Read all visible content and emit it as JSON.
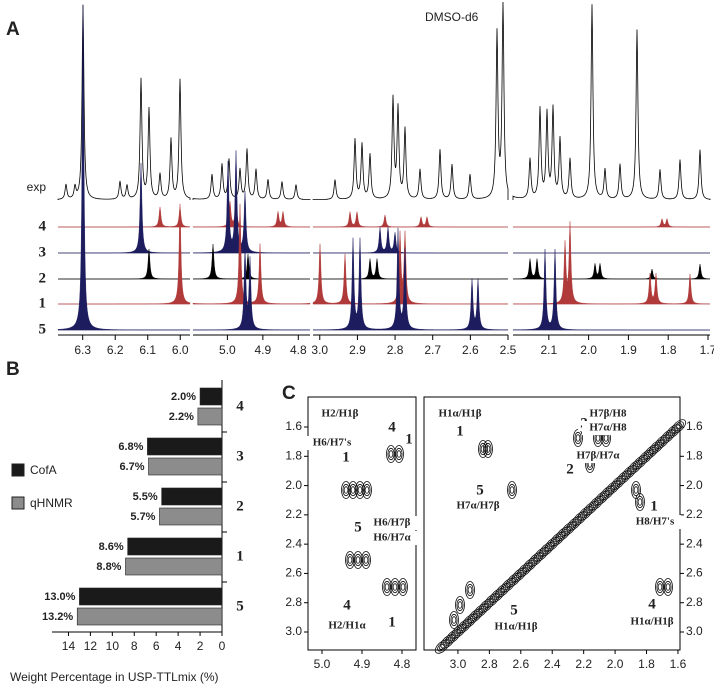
{
  "chart_data": [
    {
      "type": "spectrum",
      "panel_label": "A",
      "solvent_label": "DMSO-d6",
      "rows": [
        {
          "label": "exp",
          "color": "#000000"
        },
        {
          "label": "4",
          "color": "#b03a3a"
        },
        {
          "label": "3",
          "color": "#1c1c5e"
        },
        {
          "label": "2",
          "color": "#000000"
        },
        {
          "label": "1",
          "color": "#b03a3a"
        },
        {
          "label": "5",
          "color": "#1c1c5e"
        }
      ],
      "segments": [
        {
          "xlim": [
            6.376,
            5.97
          ],
          "xticks": [
            6.3,
            6.2,
            6.1,
            {
              "value": 6,
              "label": "6.0"
            }
          ]
        },
        {
          "xlim": [
            5.097,
            4.767
          ],
          "xticks": [
            {
              "value": 5,
              "label": "5.0"
            },
            4.9,
            4.8
          ]
        },
        {
          "xlim": [
            3.018,
            2.5
          ],
          "xticks": [
            {
              "value": 3,
              "label": "3.0"
            },
            2.9,
            2.8,
            2.7,
            2.6,
            2.5
          ]
        },
        {
          "xlim": [
            2.19,
            1.695
          ],
          "xticks": [
            2.1,
            {
              "value": 2,
              "label": "2.0"
            },
            1.9,
            1.8,
            1.7
          ]
        }
      ]
    },
    {
      "type": "bar",
      "panel_label": "B",
      "xlabel": "Weight Percentage in USP-TTLmix (%)",
      "categories": [
        "4",
        "3",
        "2",
        "1",
        "5"
      ],
      "series": [
        {
          "name": "CofA",
          "color": "#1a1a1a",
          "values": [
            2.0,
            6.8,
            5.5,
            8.6,
            13.0
          ],
          "value_labels": [
            "2.0%",
            "6.8%",
            "5.5%",
            "8.6%",
            "13.0%"
          ]
        },
        {
          "name": "qHNMR",
          "color": "#8c8c8c",
          "values": [
            2.2,
            6.7,
            5.7,
            8.8,
            13.2
          ],
          "value_labels": [
            "2.2%",
            "6.7%",
            "5.7%",
            "8.8%",
            "13.2%"
          ]
        }
      ],
      "xlim": [
        15.5,
        0
      ],
      "xticks": [
        14,
        12,
        10,
        8,
        6,
        4,
        2,
        0
      ]
    },
    {
      "type": "contour",
      "panel_label": "C",
      "boxes": [
        {
          "xlim": [
            5.035,
            4.765
          ],
          "xticks": [
            {
              "value": 5,
              "label": "5.0"
            },
            4.9,
            4.8
          ]
        },
        {
          "xlim": [
            3.216,
            1.587
          ],
          "xticks": [
            {
              "value": 3,
              "label": "3.0"
            },
            2.8,
            2.6,
            2.4,
            2.2,
            {
              "value": 2,
              "label": "2.0"
            },
            1.8,
            1.6
          ]
        }
      ],
      "ylim": [
        1.395,
        3.123
      ],
      "yticks": [
        1.6,
        1.8,
        {
          "value": 2,
          "label": "2.0"
        },
        2.2,
        2.4,
        2.6,
        2.8,
        {
          "value": 3,
          "label": "3.0"
        }
      ],
      "annotations": [
        "H2/H1β",
        "4",
        "H6/H7's",
        "1",
        "1",
        "5",
        "H6/H7β",
        "H6/H7α",
        "4",
        "1",
        "H2/H1α",
        "H1α/H1β",
        "1",
        "H7β/H8",
        "2",
        "H7α/H8",
        "H7β/H7α",
        "2",
        "5",
        "H7α/H7β",
        "1",
        "H8/H7's",
        "4",
        "H1α/H1β",
        "5",
        "H1α/H1β"
      ]
    }
  ]
}
